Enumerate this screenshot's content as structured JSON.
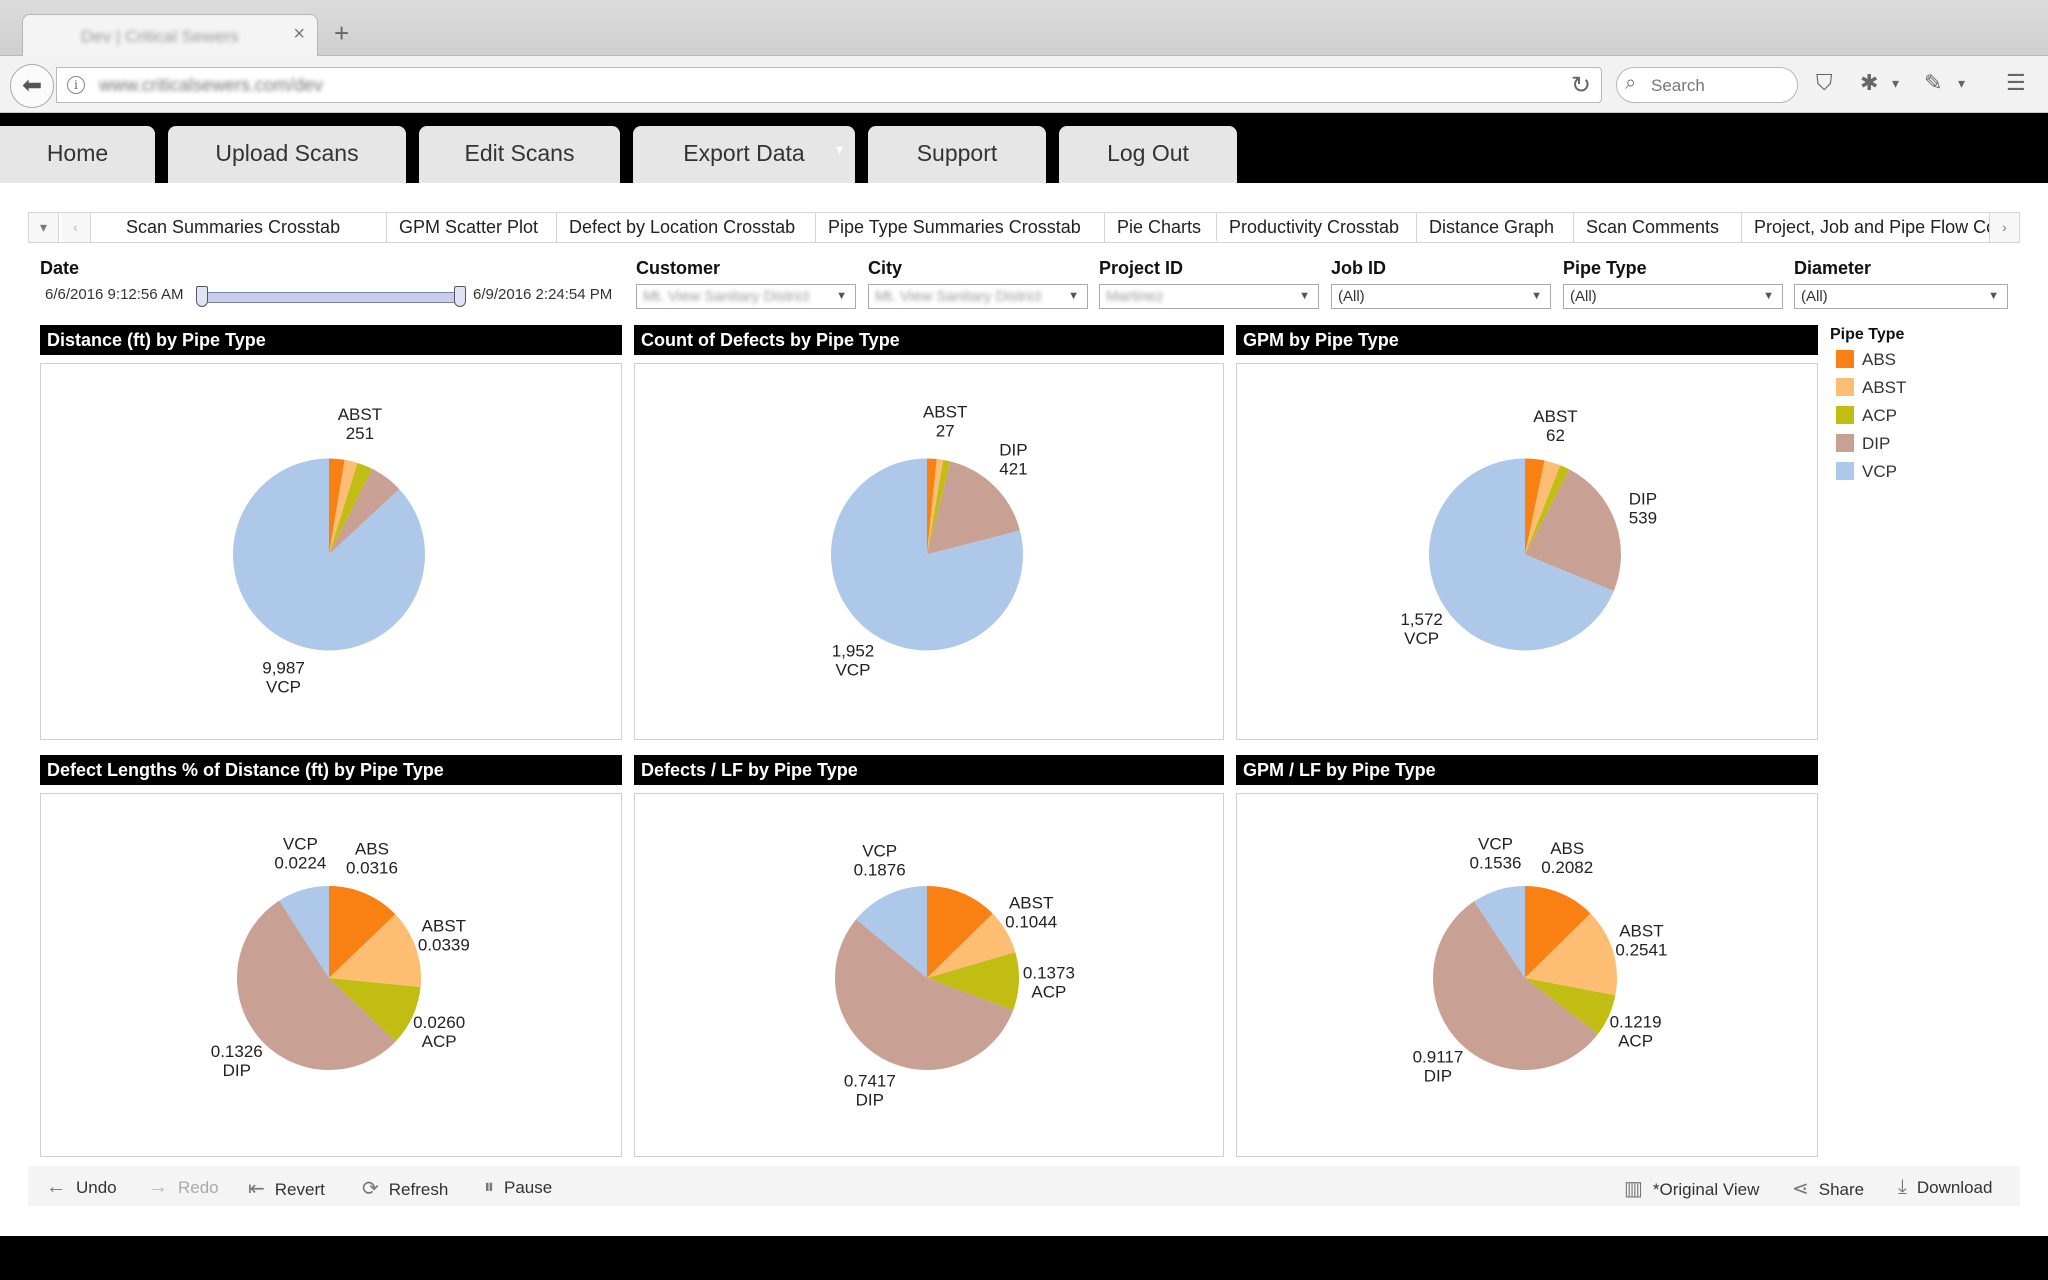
{
  "browser": {
    "tab_title": "Dev | Critical Sewers",
    "new_tab": "+",
    "url": "www.criticalsewers.com/dev",
    "search_placeholder": "Search"
  },
  "nav": {
    "items": [
      "Home",
      "Upload Scans",
      "Edit Scans",
      "Export Data",
      "Support",
      "Log Out"
    ]
  },
  "dashboard_tabs": [
    "Scan Summaries Crosstab",
    "GPM Scatter Plot",
    "Defect by Location Crosstab",
    "Pipe Type Summaries Crosstab",
    "Pie Charts",
    "Productivity Crosstab",
    "Distance Graph",
    "Scan Comments",
    "Project, Job and Pipe Flow Cor"
  ],
  "active_tab": "Pie Charts",
  "filters": {
    "date": {
      "label": "Date",
      "start": "6/6/2016 9:12:56 AM",
      "end": "6/9/2016 2:24:54 PM"
    },
    "customer": {
      "label": "Customer",
      "value": "Mt. View Sanitary District"
    },
    "city": {
      "label": "City",
      "value": "Mt. View Sanitary District"
    },
    "project_id": {
      "label": "Project ID",
      "value": "Martinez"
    },
    "job_id": {
      "label": "Job ID",
      "value": "(All)"
    },
    "pipe_type": {
      "label": "Pipe Type",
      "value": "(All)"
    },
    "diameter": {
      "label": "Diameter",
      "value": "(All)"
    }
  },
  "legend": {
    "title": "Pipe Type",
    "items": [
      {
        "name": "ABS",
        "color": "#f98012"
      },
      {
        "name": "ABST",
        "color": "#fdbd72"
      },
      {
        "name": "ACP",
        "color": "#c2bd12"
      },
      {
        "name": "DIP",
        "color": "#c9a094"
      },
      {
        "name": "VCP",
        "color": "#adc8e8"
      }
    ]
  },
  "chart_data": [
    {
      "type": "pie",
      "title": "Distance (ft) by Pipe Type",
      "categories": [
        "ABS",
        "ABST",
        "ACP",
        "DIP",
        "VCP"
      ],
      "values": [
        300,
        251,
        300,
        650,
        9987
      ],
      "labels": [
        {
          "name": "ABST",
          "value": "251"
        },
        {
          "name": "VCP",
          "value": "9,987"
        }
      ]
    },
    {
      "type": "pie",
      "title": "Count of Defects by Pipe Type",
      "categories": [
        "ABS",
        "ABST",
        "ACP",
        "DIP",
        "VCP"
      ],
      "values": [
        40,
        27,
        30,
        421,
        1952
      ],
      "labels": [
        {
          "name": "ABST",
          "value": "27"
        },
        {
          "name": "DIP",
          "value": "421"
        },
        {
          "name": "VCP",
          "value": "1,952"
        }
      ]
    },
    {
      "type": "pie",
      "title": "GPM by Pipe Type",
      "categories": [
        "ABS",
        "ABST",
        "ACP",
        "DIP",
        "VCP"
      ],
      "values": [
        75,
        62,
        38,
        539,
        1572
      ],
      "labels": [
        {
          "name": "ABST",
          "value": "62"
        },
        {
          "name": "DIP",
          "value": "539"
        },
        {
          "name": "VCP",
          "value": "1,572"
        }
      ]
    },
    {
      "type": "pie",
      "title": "Defect Lengths % of Distance (ft) by Pipe Type",
      "categories": [
        "ABS",
        "ABST",
        "ACP",
        "DIP",
        "VCP"
      ],
      "values": [
        0.0316,
        0.0339,
        0.026,
        0.1326,
        0.0224
      ],
      "labels": [
        {
          "name": "ABS",
          "value": "0.0316"
        },
        {
          "name": "ABST",
          "value": "0.0339"
        },
        {
          "name": "ACP",
          "value": "0.0260"
        },
        {
          "name": "DIP",
          "value": "0.1326"
        },
        {
          "name": "VCP",
          "value": "0.0224"
        }
      ]
    },
    {
      "type": "pie",
      "title": "Defects / LF by Pipe Type",
      "categories": [
        "ABS",
        "ABST",
        "ACP",
        "DIP",
        "VCP"
      ],
      "values": [
        0.17,
        0.1044,
        0.1373,
        0.7417,
        0.1876
      ],
      "labels": [
        {
          "name": "ABST",
          "value": "0.1044"
        },
        {
          "name": "ACP",
          "value": "0.1373"
        },
        {
          "name": "DIP",
          "value": "0.7417"
        },
        {
          "name": "VCP",
          "value": "0.1876"
        }
      ]
    },
    {
      "type": "pie",
      "title": "GPM / LF by Pipe Type",
      "categories": [
        "ABS",
        "ABST",
        "ACP",
        "DIP",
        "VCP"
      ],
      "values": [
        0.2082,
        0.2541,
        0.1219,
        0.9117,
        0.1536
      ],
      "labels": [
        {
          "name": "ABS",
          "value": "0.2082"
        },
        {
          "name": "ABST",
          "value": "0.2541"
        },
        {
          "name": "ACP",
          "value": "0.1219"
        },
        {
          "name": "DIP",
          "value": "0.9117"
        },
        {
          "name": "VCP",
          "value": "0.1536"
        }
      ]
    }
  ],
  "toolbar": {
    "undo": "Undo",
    "redo": "Redo",
    "revert": "Revert",
    "refresh": "Refresh",
    "pause": "Pause",
    "original_view": "*Original View",
    "share": "Share",
    "download": "Download"
  }
}
